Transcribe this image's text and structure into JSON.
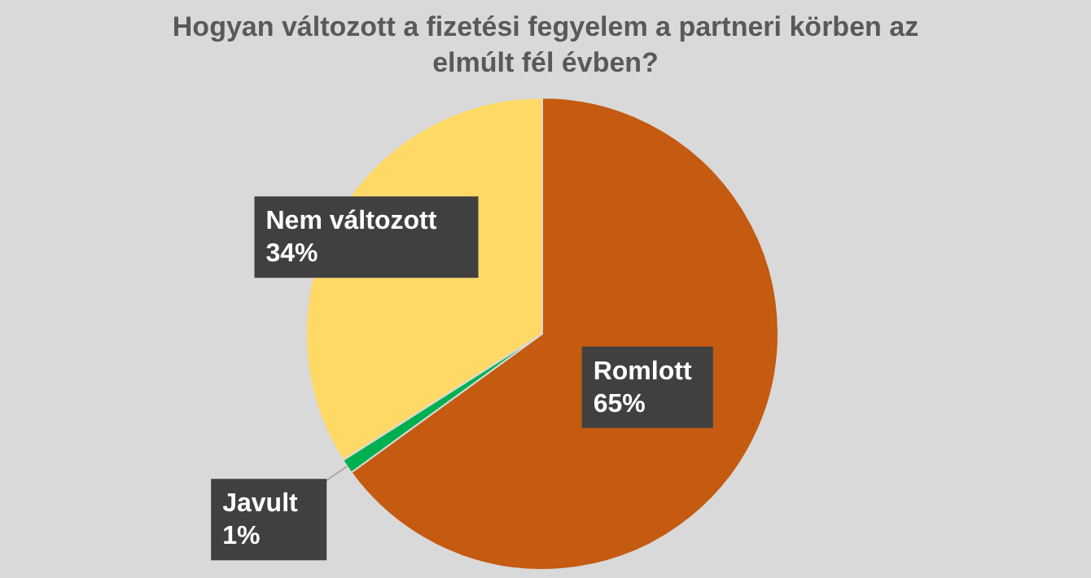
{
  "chart_data": {
    "type": "pie",
    "title": [
      "Hogyan változott a fizetési fegyelem a partneri körben az",
      "elmúlt fél évben?"
    ],
    "categories": [
      "Romlott",
      "Javult",
      "Nem változott"
    ],
    "values": [
      65,
      1,
      34
    ],
    "colors": [
      "#c55a11",
      "#00b050",
      "#ffd966"
    ],
    "value_labels": [
      "65%",
      "1%",
      "34%"
    ],
    "legend": false
  }
}
